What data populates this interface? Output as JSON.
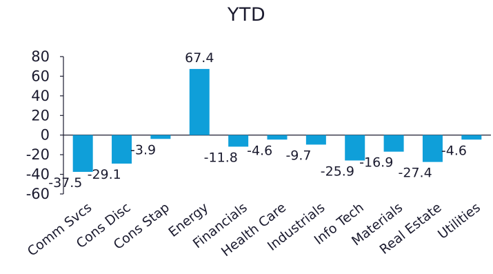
{
  "chart_data": {
    "type": "bar",
    "title": "YTD",
    "xlabel": "",
    "ylabel": "",
    "categories": [
      "Comm Svcs",
      "Cons Disc",
      "Cons Stap",
      "Energy",
      "Financials",
      "Health Care",
      "Industrials",
      "Info Tech",
      "Materials",
      "Real Estate",
      "Utilities"
    ],
    "values": [
      -37.5,
      -29.1,
      -3.9,
      67.4,
      -11.8,
      -4.6,
      -9.7,
      -25.9,
      -16.9,
      -27.4,
      -4.6
    ],
    "data_labels": [
      "-37.5",
      "-29.1",
      "-3.9",
      "67.4",
      "-11.8",
      "-4.6",
      "-9.7",
      "-25.9",
      "-16.9",
      "-27.4",
      "-4.6"
    ],
    "ylim": [
      -60,
      80
    ],
    "yticks": [
      80,
      60,
      40,
      20,
      0,
      -20,
      -40,
      -60
    ],
    "ytick_labels": [
      "80",
      "60",
      "40",
      "20",
      "0",
      "-20",
      "-40",
      "-60"
    ],
    "grid": false,
    "legend": "none",
    "colors": {
      "bar": "#0f9fd9",
      "axis": "#1a1a2e",
      "text": "#1a1a2e"
    }
  }
}
